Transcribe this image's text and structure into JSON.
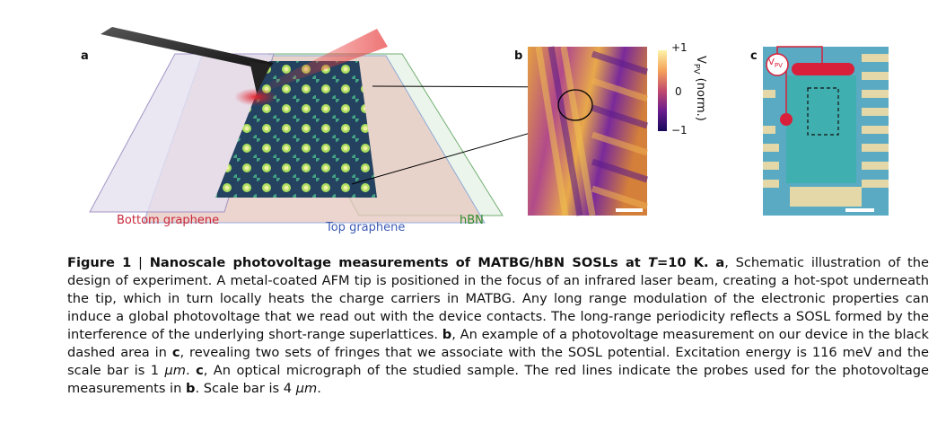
{
  "panels": {
    "a": {
      "letter": "a",
      "labels": {
        "bottom_graphene": "Bottom graphene",
        "top_graphene": "Top graphene",
        "hbn": "hBN"
      },
      "colors": {
        "bottom_graphene": "#c8283c",
        "top_graphene": "#3c5ab4",
        "hbn": "#2a8a2a"
      }
    },
    "b": {
      "letter": "b",
      "colorbar": {
        "max": "+1",
        "mid": "0",
        "min": "−1",
        "label_main": "V",
        "label_sub": "PV",
        "label_rest": " (norm.)"
      }
    },
    "c": {
      "letter": "c",
      "probe_label_main": "V",
      "probe_label_sub": "PV"
    }
  },
  "caption": {
    "figure_label": "Figure 1",
    "separator": " | ",
    "title": "Nanoscale photovoltage measurements of MATBG/hBN SOSLs at",
    "title_temp_var": "T",
    "title_temp_val": "=10 K.",
    "a_letter": "a",
    "a_text": ", Schematic illustration of the design of experiment. A metal-coated AFM tip is positioned in the focus of an infrared laser beam, creating a hot-spot underneath the tip, which in turn locally heats the charge carriers in MATBG. Any long range modulation of the electronic properties can induce a global photovoltage that we read out with the device contacts. The long-range periodicity reflects a SOSL formed by the interference of the underlying short-range superlattices. ",
    "b_letter": "b",
    "b_text_1": ", An example of a photovoltage measurement on our device in the black dashed area in ",
    "b_ref_c": "c",
    "b_text_2": ", revealing two sets of fringes that we associate with the SOSL potential. Excitation energy is 116 meV and the scale bar is 1 ",
    "b_unit": "μm",
    "b_text_3": ". ",
    "c_letter": "c",
    "c_text_1": ", An optical micrograph of the studied sample. The red lines indicate the probes used for the photovoltage measurements in ",
    "c_ref_b": "b",
    "c_text_2": ". Scale bar is 4 ",
    "c_unit": "μm",
    "c_text_3": "."
  }
}
